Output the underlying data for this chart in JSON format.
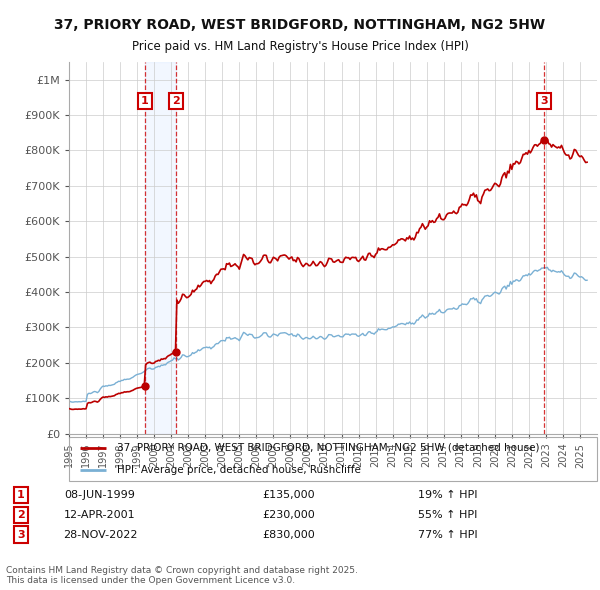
{
  "title": "37, PRIORY ROAD, WEST BRIDGFORD, NOTTINGHAM, NG2 5HW",
  "subtitle": "Price paid vs. HM Land Registry's House Price Index (HPI)",
  "background_color": "#ffffff",
  "grid_color": "#cccccc",
  "ylim": [
    0,
    1050000
  ],
  "yticks": [
    0,
    100000,
    200000,
    300000,
    400000,
    500000,
    600000,
    700000,
    800000,
    900000,
    1000000
  ],
  "ytick_labels": [
    "£0",
    "£100K",
    "£200K",
    "£300K",
    "£400K",
    "£500K",
    "£600K",
    "£700K",
    "£800K",
    "£900K",
    "£1M"
  ],
  "sales": [
    {
      "date_num": 1999.44,
      "price": 135000,
      "label": "1"
    },
    {
      "date_num": 2001.28,
      "price": 230000,
      "label": "2"
    },
    {
      "date_num": 2022.91,
      "price": 830000,
      "label": "3"
    }
  ],
  "sale_line_color": "#bb0000",
  "hpi_line_color": "#7ab0d4",
  "legend_sale_label": "37, PRIORY ROAD, WEST BRIDGFORD, NOTTINGHAM, NG2 5HW (detached house)",
  "legend_hpi_label": "HPI: Average price, detached house, Rushcliffe",
  "table_rows": [
    {
      "num": "1",
      "date": "08-JUN-1999",
      "price": "£135,000",
      "change": "19% ↑ HPI"
    },
    {
      "num": "2",
      "date": "12-APR-2001",
      "price": "£230,000",
      "change": "55% ↑ HPI"
    },
    {
      "num": "3",
      "date": "28-NOV-2022",
      "price": "£830,000",
      "change": "77% ↑ HPI"
    }
  ],
  "footer": "Contains HM Land Registry data © Crown copyright and database right 2025.\nThis data is licensed under the Open Government Licence v3.0.",
  "xmin": 1995,
  "xmax": 2026
}
